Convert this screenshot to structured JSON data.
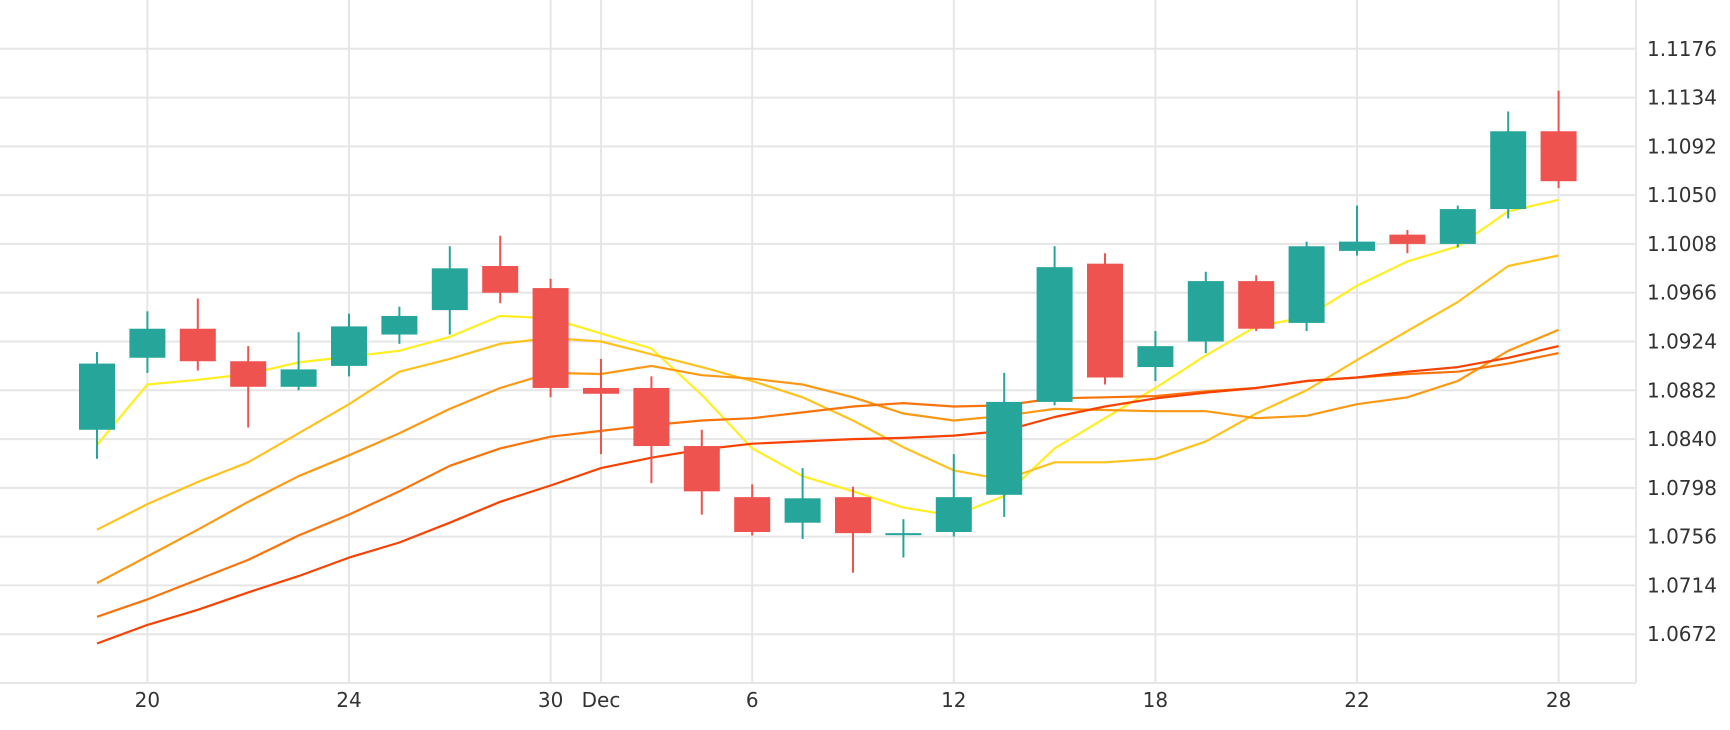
{
  "chart_data": {
    "type": "candlestick",
    "title": "",
    "xlabel": "",
    "ylabel": "",
    "ylim": [
      1.063,
      1.1218
    ],
    "grid": true,
    "colors": {
      "up": "#26a69a",
      "down": "#ef5350"
    },
    "y_ticks": [
      1.0672,
      1.0714,
      1.0756,
      1.0798,
      1.084,
      1.0882,
      1.0924,
      1.0966,
      1.1008,
      1.105,
      1.1092,
      1.1134,
      1.1176
    ],
    "y_tick_labels": [
      "1.0672",
      "1.0714",
      "1.0756",
      "1.0798",
      "1.0840",
      "1.0882",
      "1.0924",
      "1.0966",
      "1.1008",
      "1.1050",
      "1.1092",
      "1.1134",
      "1.1176"
    ],
    "x_ticks": [
      {
        "index": 1,
        "label": "20"
      },
      {
        "index": 5,
        "label": "24"
      },
      {
        "index": 9,
        "label": "30"
      },
      {
        "index": 10,
        "label": "Dec"
      },
      {
        "index": 13,
        "label": "6"
      },
      {
        "index": 17,
        "label": "12"
      },
      {
        "index": 21,
        "label": "18"
      },
      {
        "index": 25,
        "label": "22"
      },
      {
        "index": 29,
        "label": "28"
      }
    ],
    "candles": [
      {
        "o": 1.0848,
        "h": 1.0915,
        "l": 1.0823,
        "c": 1.0905
      },
      {
        "o": 1.091,
        "h": 1.095,
        "l": 1.0897,
        "c": 1.0935
      },
      {
        "o": 1.0935,
        "h": 1.0961,
        "l": 1.0899,
        "c": 1.0907
      },
      {
        "o": 1.0907,
        "h": 1.092,
        "l": 1.085,
        "c": 1.0885
      },
      {
        "o": 1.0885,
        "h": 1.0932,
        "l": 1.0882,
        "c": 1.09
      },
      {
        "o": 1.0903,
        "h": 1.0948,
        "l": 1.0894,
        "c": 1.0937
      },
      {
        "o": 1.093,
        "h": 1.0954,
        "l": 1.0922,
        "c": 1.0946
      },
      {
        "o": 1.0951,
        "h": 1.1006,
        "l": 1.093,
        "c": 1.0987
      },
      {
        "o": 1.0989,
        "h": 1.1015,
        "l": 1.0957,
        "c": 1.0966
      },
      {
        "o": 1.097,
        "h": 1.0978,
        "l": 1.0876,
        "c": 1.0884
      },
      {
        "o": 1.0884,
        "h": 1.0909,
        "l": 1.0827,
        "c": 1.0879
      },
      {
        "o": 1.0884,
        "h": 1.0894,
        "l": 1.0802,
        "c": 1.0834
      },
      {
        "o": 1.0834,
        "h": 1.0848,
        "l": 1.0775,
        "c": 1.0795
      },
      {
        "o": 1.079,
        "h": 1.0801,
        "l": 1.0757,
        "c": 1.076
      },
      {
        "o": 1.0768,
        "h": 1.0815,
        "l": 1.0754,
        "c": 1.0789
      },
      {
        "o": 1.079,
        "h": 1.0799,
        "l": 1.0725,
        "c": 1.0759
      },
      {
        "o": 1.0759,
        "h": 1.0771,
        "l": 1.0738,
        "c": 1.0759
      },
      {
        "o": 1.076,
        "h": 1.0827,
        "l": 1.0756,
        "c": 1.079
      },
      {
        "o": 1.0792,
        "h": 1.0897,
        "l": 1.0773,
        "c": 1.0872
      },
      {
        "o": 1.0872,
        "h": 1.1006,
        "l": 1.0869,
        "c": 1.0988
      },
      {
        "o": 1.0991,
        "h": 1.1,
        "l": 1.0887,
        "c": 1.0893
      },
      {
        "o": 1.0902,
        "h": 1.0933,
        "l": 1.089,
        "c": 1.092
      },
      {
        "o": 1.0924,
        "h": 1.0984,
        "l": 1.0914,
        "c": 1.0976
      },
      {
        "o": 1.0976,
        "h": 1.0981,
        "l": 1.0933,
        "c": 1.0935
      },
      {
        "o": 1.094,
        "h": 1.101,
        "l": 1.0933,
        "c": 1.1006
      },
      {
        "o": 1.1002,
        "h": 1.1041,
        "l": 1.0998,
        "c": 1.101
      },
      {
        "o": 1.1016,
        "h": 1.102,
        "l": 1.1,
        "c": 1.1008
      },
      {
        "o": 1.1008,
        "h": 1.1041,
        "l": 1.1005,
        "c": 1.1038
      },
      {
        "o": 1.1038,
        "h": 1.1122,
        "l": 1.103,
        "c": 1.1105
      },
      {
        "o": 1.1105,
        "h": 1.114,
        "l": 1.1056,
        "c": 1.1062
      }
    ],
    "series": [
      {
        "color": "#ffee22",
        "values": [
          1.0835,
          1.0887,
          1.0891,
          1.0896,
          1.0906,
          1.0911,
          1.0916,
          1.0928,
          1.0946,
          1.0944,
          1.0931,
          1.0918,
          1.0878,
          1.0832,
          1.0808,
          1.0795,
          1.0781,
          1.0774,
          1.0791,
          1.0832,
          1.0858,
          1.0884,
          1.0912,
          1.0937,
          1.0945,
          1.0972,
          1.0993,
          1.1006,
          1.1036,
          1.1046
        ]
      },
      {
        "color": "#fdc21f",
        "values": [
          1.0762,
          1.0784,
          1.0803,
          1.082,
          1.0845,
          1.087,
          1.0898,
          1.0909,
          1.0922,
          1.0927,
          1.0924,
          1.0913,
          1.0902,
          1.089,
          1.0876,
          1.0856,
          1.0833,
          1.0813,
          1.0805,
          1.082,
          1.082,
          1.0823,
          1.0838,
          1.0862,
          1.0882,
          1.0908,
          1.0933,
          1.0958,
          1.0989,
          1.0998
        ]
      },
      {
        "color": "#fb9914",
        "values": [
          1.0716,
          1.0739,
          1.0762,
          1.0786,
          1.0808,
          1.0826,
          1.0845,
          1.0866,
          1.0884,
          1.0897,
          1.0896,
          1.0903,
          1.0895,
          1.0892,
          1.0887,
          1.0876,
          1.0862,
          1.0856,
          1.086,
          1.0866,
          1.0865,
          1.0864,
          1.0864,
          1.0858,
          1.086,
          1.087,
          1.0876,
          1.089,
          1.0916,
          1.0934
        ]
      },
      {
        "color": "#f9730b",
        "values": [
          1.0687,
          1.0702,
          1.0719,
          1.0736,
          1.0757,
          1.0775,
          1.0795,
          1.0817,
          1.0832,
          1.0842,
          1.0847,
          1.0852,
          1.0856,
          1.0858,
          1.0863,
          1.0868,
          1.0871,
          1.0868,
          1.0869,
          1.0875,
          1.0876,
          1.0877,
          1.0881,
          1.0884,
          1.089,
          1.0893,
          1.0896,
          1.0898,
          1.0905,
          1.0914
        ]
      },
      {
        "color": "#f84202",
        "values": [
          1.0664,
          1.068,
          1.0693,
          1.0708,
          1.0722,
          1.0738,
          1.0751,
          1.0768,
          1.0786,
          1.08,
          1.0815,
          1.0824,
          1.0831,
          1.0836,
          1.0838,
          1.084,
          1.0841,
          1.0843,
          1.0847,
          1.0859,
          1.0868,
          1.0875,
          1.088,
          1.0884,
          1.089,
          1.0893,
          1.0898,
          1.0902,
          1.091,
          1.092
        ]
      }
    ]
  }
}
